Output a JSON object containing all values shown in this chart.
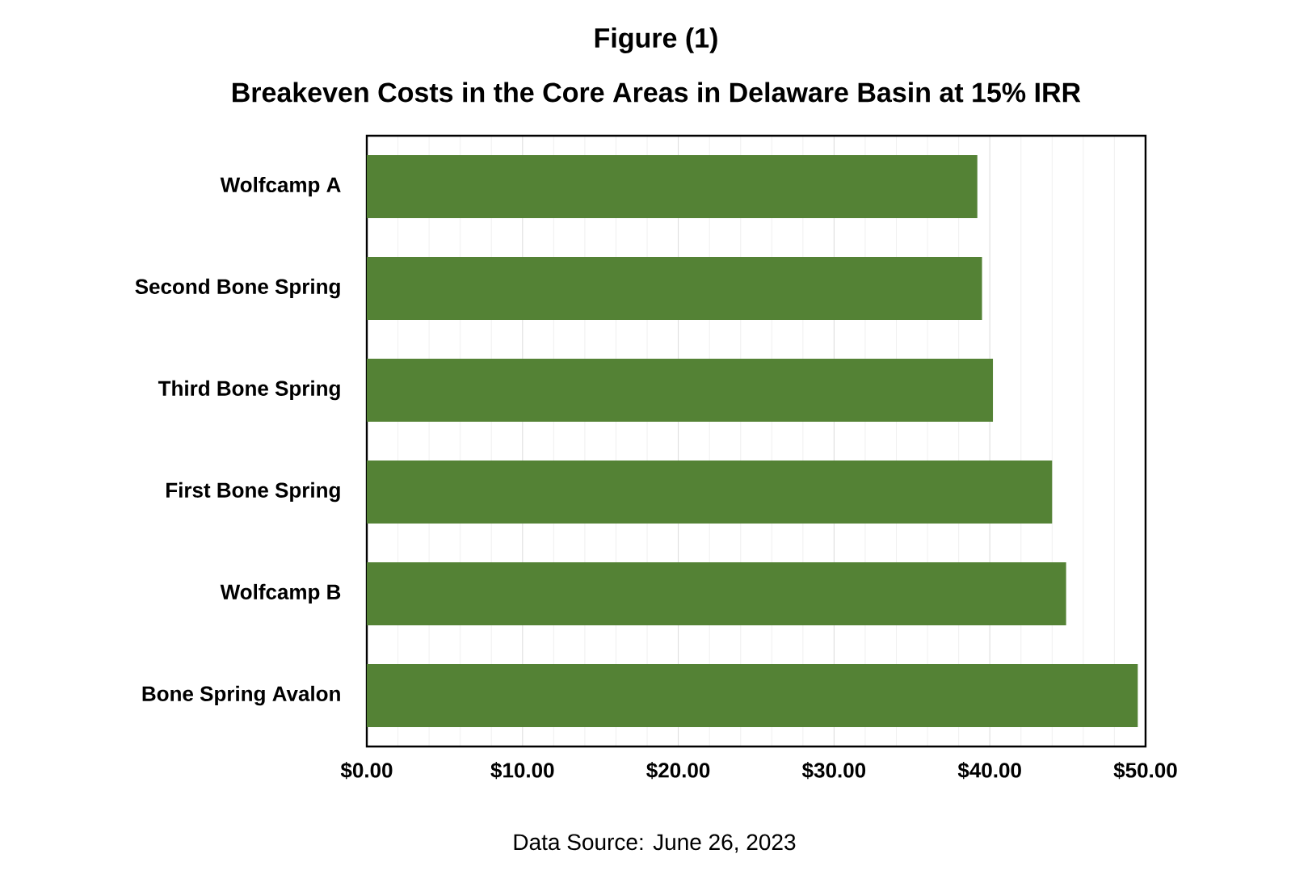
{
  "chart_data": {
    "type": "bar",
    "orientation": "horizontal",
    "title": "Figure (1)",
    "subtitle": "Breakeven Costs in the Core Areas in Delaware Basin at 15% IRR",
    "categories": [
      "Wolfcamp A",
      "Second Bone Spring",
      "Third Bone Spring",
      "First Bone Spring",
      "Wolfcamp B",
      "Bone Spring Avalon"
    ],
    "values": [
      39.2,
      39.5,
      40.2,
      44.0,
      44.9,
      49.5
    ],
    "color": "#548235",
    "xlim": [
      0,
      50
    ],
    "xticks": [
      {
        "value": 0,
        "label": "$0.00"
      },
      {
        "value": 10,
        "label": "$10.00"
      },
      {
        "value": 20,
        "label": "$20.00"
      },
      {
        "value": 30,
        "label": "$30.00"
      },
      {
        "value": 40,
        "label": "$40.00"
      },
      {
        "value": 50,
        "label": "$50.00"
      }
    ],
    "grid": "x",
    "annotations": [
      "Data Source: June 26, 2023"
    ]
  }
}
